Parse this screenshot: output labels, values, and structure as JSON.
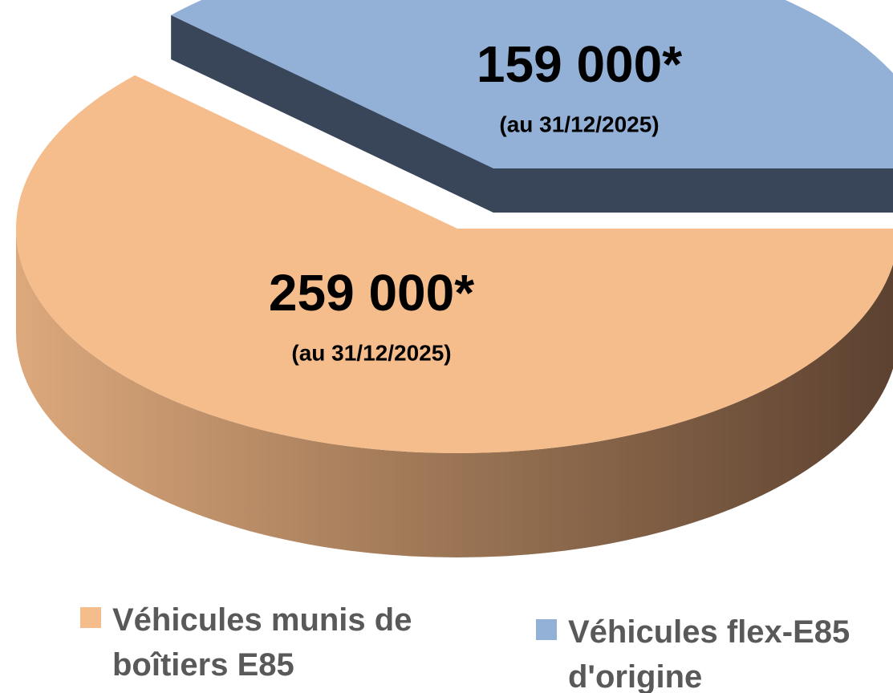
{
  "chart_data": {
    "type": "pie",
    "categories": [
      "Véhicules munis de boîtiers E85",
      "Véhicules flex-E85 d'origine"
    ],
    "values": [
      259000,
      159000
    ],
    "value_labels": [
      "259 000*",
      "159 000*"
    ],
    "annotations": [
      "(au 31/12/2025)",
      "(au 31/12/2025)"
    ],
    "colors": [
      "#f5bc8c",
      "#93b1d7"
    ],
    "legend": "bottom"
  }
}
